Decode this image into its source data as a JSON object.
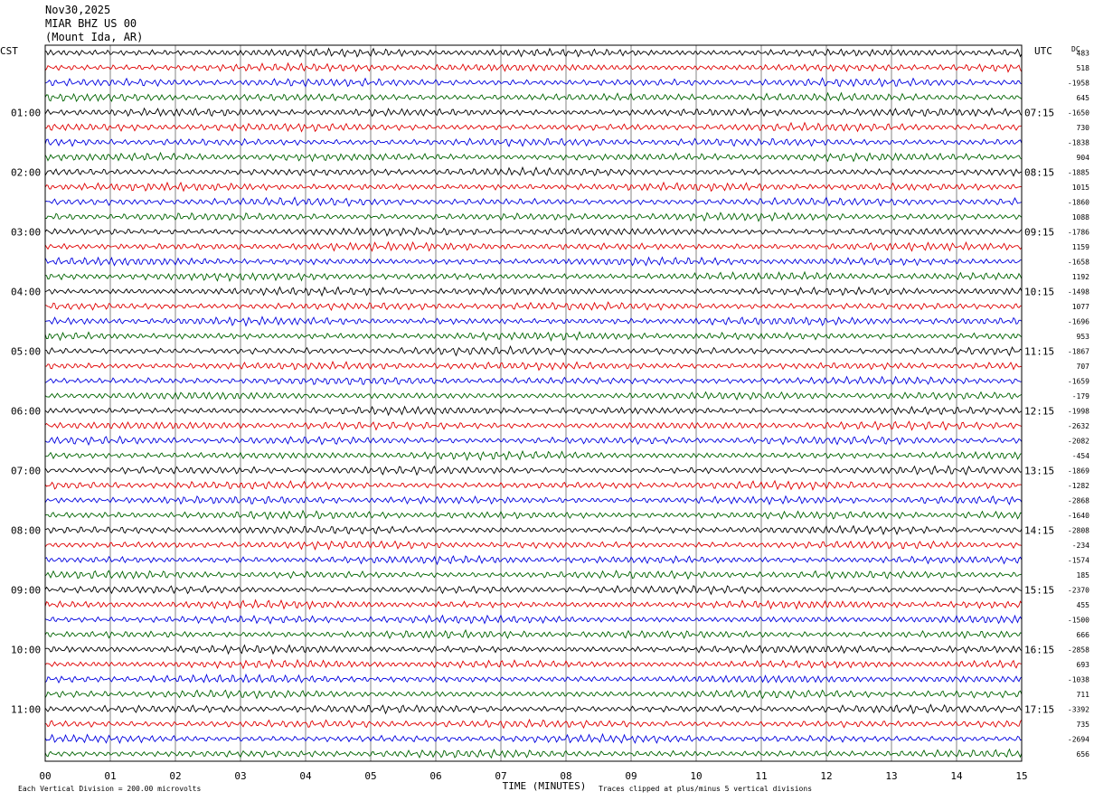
{
  "header": {
    "date": "Nov30,2025",
    "station": "MIAR BHZ US 00",
    "location": "(Mount Ida, AR)"
  },
  "chart_data": {
    "type": "line",
    "subtype": "helicorder",
    "left_tz": "CST",
    "right_tz": "UTC",
    "dc_label": "DC",
    "xlabel": "TIME (MINUTES)",
    "x_ticks": [
      "00",
      "01",
      "02",
      "03",
      "04",
      "05",
      "06",
      "07",
      "08",
      "09",
      "10",
      "11",
      "12",
      "13",
      "14",
      "15"
    ],
    "xlim": [
      0,
      15
    ],
    "left_hour_labels": [
      "01:00",
      "02:00",
      "03:00",
      "04:00",
      "05:00",
      "06:00",
      "07:00",
      "08:00",
      "09:00",
      "10:00",
      "11:00"
    ],
    "right_hour_labels": [
      "07:15",
      "08:15",
      "09:15",
      "10:15",
      "11:15",
      "12:15",
      "13:15",
      "14:15",
      "15:15",
      "16:15",
      "17:15"
    ],
    "trace_colors": [
      "#000000",
      "#e00000",
      "#0000e0",
      "#006400"
    ],
    "rows_per_hour": 4,
    "minutes_per_row": 15,
    "dc_offsets": [
      "483",
      "518",
      "-1958",
      "645",
      "-1650",
      "730",
      "-1838",
      "904",
      "-1885",
      "1015",
      "-1860",
      "1088",
      "-1786",
      "1159",
      "-1658",
      "1192",
      "-1498",
      "1077",
      "-1696",
      "953",
      "-1867",
      "707",
      "-1659",
      "-179",
      "-1998",
      "-2632",
      "-2082",
      "-454",
      "-1869",
      "-1282",
      "-2868",
      "-1640",
      "-2808",
      "-234",
      "-1574",
      "185",
      "-2370",
      "455",
      "-1500",
      "666",
      "-2858",
      "693",
      "-1038",
      "711",
      "-3392",
      "735",
      "-2694",
      "656"
    ],
    "footer_left": "Each Vertical Division =  200.00 microvolts",
    "footer_right": "Traces clipped at plus/minus 5 vertical divisions"
  }
}
